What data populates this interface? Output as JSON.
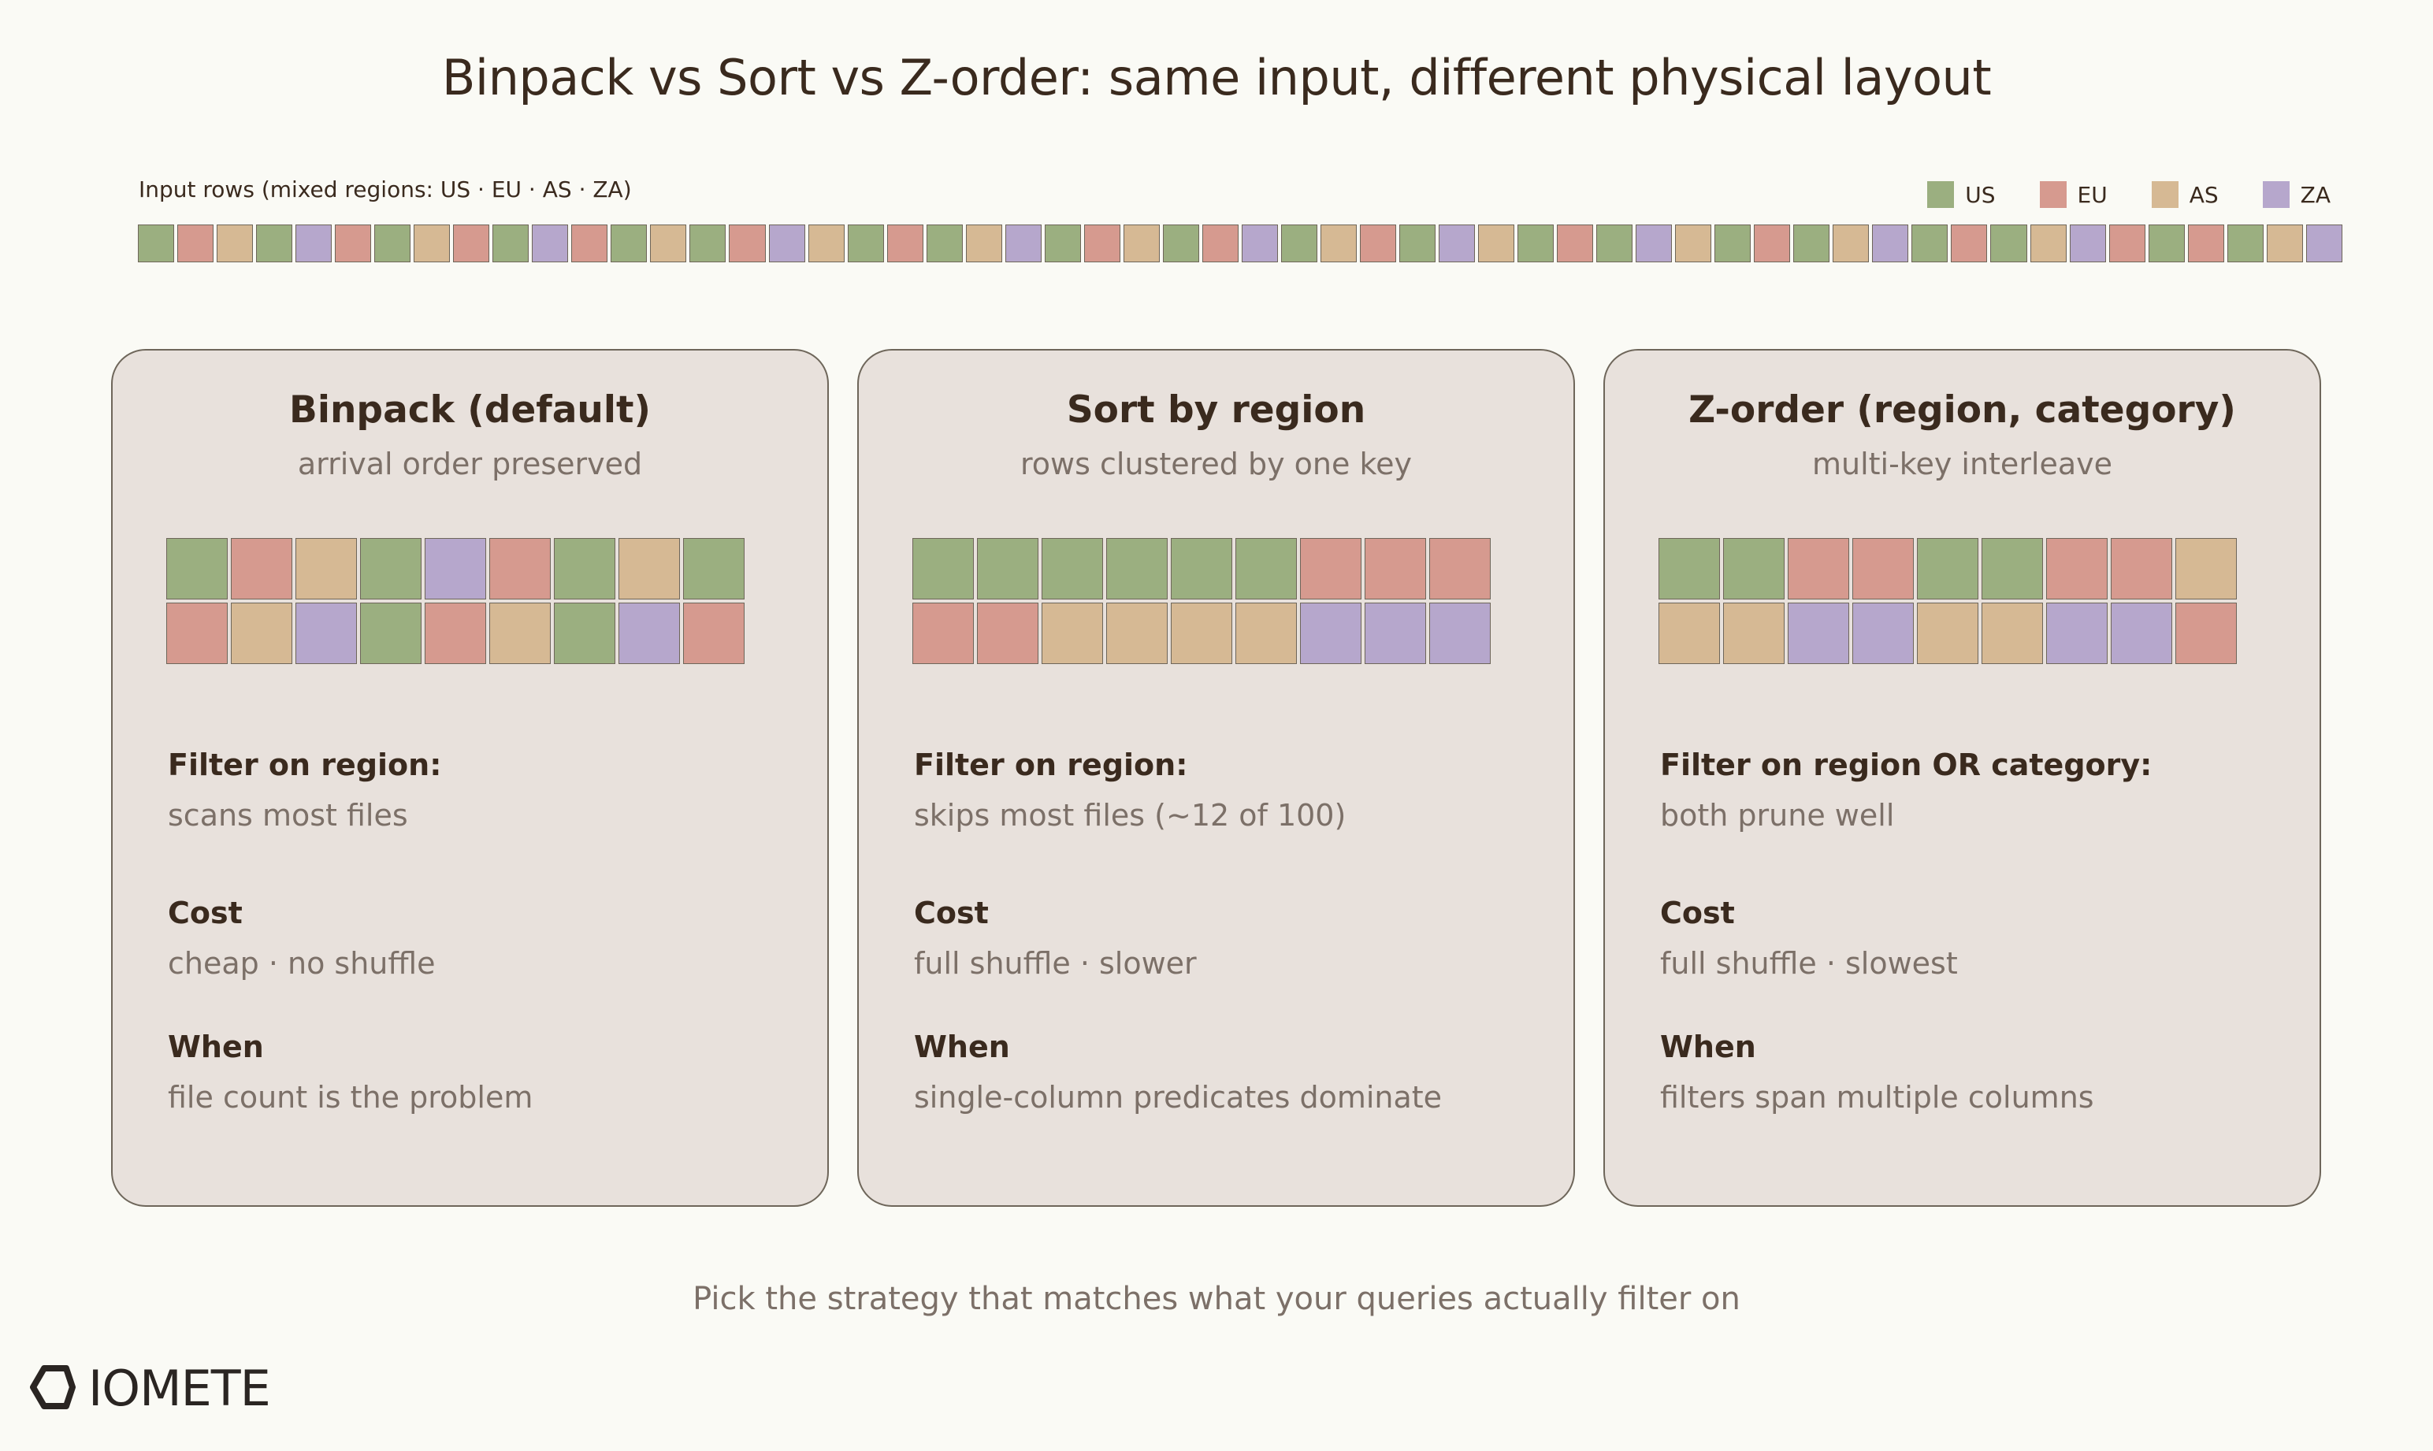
{
  "title": "Binpack vs Sort vs Z-order: same input, different physical layout",
  "input_label": "Input rows (mixed regions: US · EU · AS · ZA)",
  "colors": {
    "US": "#9baf80",
    "EU": "#d69a8f",
    "AS": "#d6b994",
    "ZA": "#b6a7cc"
  },
  "legend": [
    {
      "key": "US",
      "label": "US"
    },
    {
      "key": "EU",
      "label": "EU"
    },
    {
      "key": "AS",
      "label": "AS"
    },
    {
      "key": "ZA",
      "label": "ZA"
    }
  ],
  "input_rows": [
    "US",
    "EU",
    "AS",
    "US",
    "ZA",
    "EU",
    "US",
    "AS",
    "EU",
    "US",
    "ZA",
    "EU",
    "US",
    "AS",
    "US",
    "EU",
    "ZA",
    "AS",
    "US",
    "EU",
    "US",
    "AS",
    "ZA",
    "US",
    "EU",
    "AS",
    "US",
    "EU",
    "ZA",
    "US",
    "AS",
    "EU",
    "US",
    "ZA",
    "AS",
    "US",
    "EU",
    "US",
    "ZA",
    "AS",
    "US",
    "EU",
    "US",
    "AS",
    "ZA",
    "US",
    "EU",
    "US",
    "AS",
    "ZA",
    "EU",
    "US",
    "EU",
    "US",
    "AS",
    "ZA"
  ],
  "cards": [
    {
      "title": "Binpack (default)",
      "subtitle": "arrival order preserved",
      "grid": [
        [
          "US",
          "EU",
          "AS",
          "US",
          "ZA",
          "EU",
          "US",
          "AS",
          "US"
        ],
        [
          "EU",
          "AS",
          "ZA",
          "US",
          "EU",
          "AS",
          "US",
          "ZA",
          "EU"
        ]
      ],
      "sections": [
        {
          "head": "Filter on region:",
          "body": "scans most files"
        },
        {
          "head": "Cost",
          "body": "cheap · no shuffle"
        },
        {
          "head": "When",
          "body": "file count is the problem"
        }
      ]
    },
    {
      "title": "Sort by region",
      "subtitle": "rows clustered by one key",
      "grid": [
        [
          "US",
          "US",
          "US",
          "US",
          "US",
          "US",
          "EU",
          "EU",
          "EU"
        ],
        [
          "EU",
          "EU",
          "AS",
          "AS",
          "AS",
          "AS",
          "ZA",
          "ZA",
          "ZA"
        ]
      ],
      "sections": [
        {
          "head": "Filter on region:",
          "body": "skips most files (~12 of 100)"
        },
        {
          "head": "Cost",
          "body": "full shuffle · slower"
        },
        {
          "head": "When",
          "body": "single-column predicates dominate"
        }
      ]
    },
    {
      "title": "Z-order (region, category)",
      "subtitle": "multi-key interleave",
      "grid": [
        [
          "US",
          "US",
          "EU",
          "EU",
          "US",
          "US",
          "EU",
          "EU",
          "AS"
        ],
        [
          "AS",
          "AS",
          "ZA",
          "ZA",
          "AS",
          "AS",
          "ZA",
          "ZA",
          "EU"
        ]
      ],
      "sections": [
        {
          "head": "Filter on region OR category:",
          "body": "both prune well"
        },
        {
          "head": "Cost",
          "body": "full shuffle · slowest"
        },
        {
          "head": "When",
          "body": "filters span multiple columns"
        }
      ]
    }
  ],
  "footer": "Pick the strategy that matches what your queries actually filter on",
  "logo_text": "IOMETE"
}
